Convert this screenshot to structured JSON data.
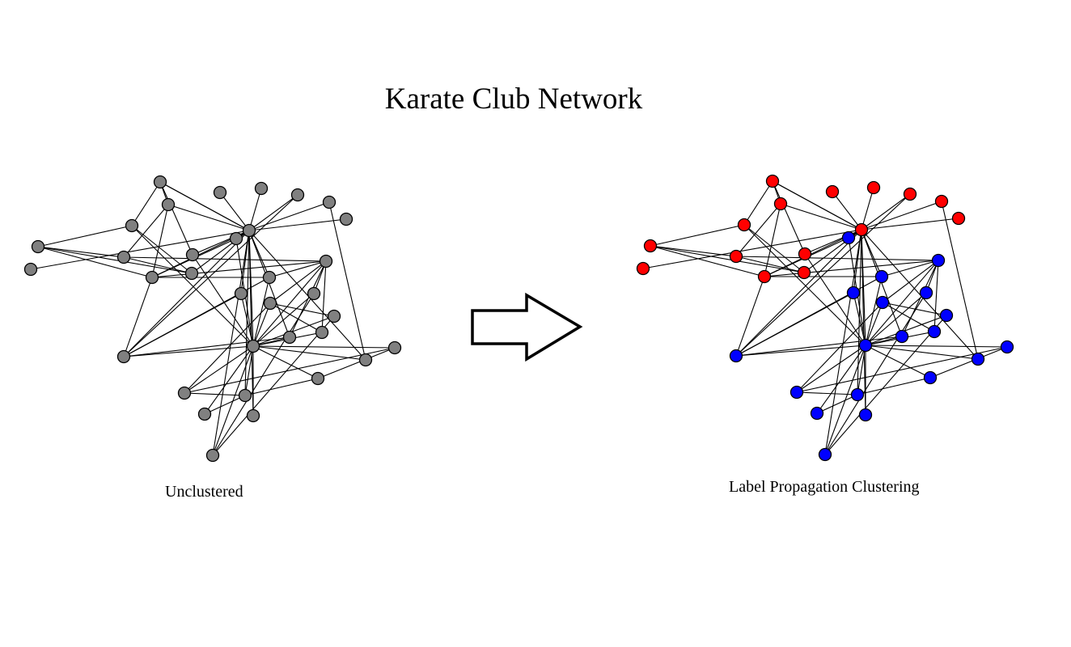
{
  "title": "Karate Club Network",
  "panels": [
    {
      "label": "Unclustered",
      "node_color": "#808080"
    },
    {
      "label": "Label Propagation Clustering",
      "clusters": [
        {
          "color": "#ff0000"
        },
        {
          "color": "#0000ff"
        }
      ]
    }
  ],
  "arrow_icon": "right-arrow-icon",
  "nodes": [
    {
      "id": 0,
      "cluster": 1
    },
    {
      "id": 1,
      "cluster": 0
    },
    {
      "id": 2,
      "cluster": 0
    },
    {
      "id": 3,
      "cluster": 0
    },
    {
      "id": 4,
      "cluster": 0
    },
    {
      "id": 5,
      "cluster": 0
    },
    {
      "id": 6,
      "cluster": 0
    },
    {
      "id": 7,
      "cluster": 0
    },
    {
      "id": 8,
      "cluster": 0
    },
    {
      "id": 9,
      "cluster": 0
    },
    {
      "id": 10,
      "cluster": 0
    },
    {
      "id": 11,
      "cluster": 0
    },
    {
      "id": 12,
      "cluster": 0
    },
    {
      "id": 13,
      "cluster": 0
    },
    {
      "id": 14,
      "cluster": 0
    },
    {
      "id": 15,
      "cluster": 1
    },
    {
      "id": 16,
      "cluster": 0
    },
    {
      "id": 17,
      "cluster": 1
    },
    {
      "id": 18,
      "cluster": 1
    },
    {
      "id": 19,
      "cluster": 1
    },
    {
      "id": 20,
      "cluster": 1
    },
    {
      "id": 21,
      "cluster": 1
    },
    {
      "id": 22,
      "cluster": 1
    },
    {
      "id": 23,
      "cluster": 1
    },
    {
      "id": 24,
      "cluster": 1
    },
    {
      "id": 25,
      "cluster": 1
    },
    {
      "id": 26,
      "cluster": 1
    },
    {
      "id": 27,
      "cluster": 1
    },
    {
      "id": 28,
      "cluster": 1
    },
    {
      "id": 29,
      "cluster": 1
    },
    {
      "id": 30,
      "cluster": 1
    },
    {
      "id": 31,
      "cluster": 1
    },
    {
      "id": 32,
      "cluster": 1
    },
    {
      "id": 33,
      "cluster": 1
    }
  ],
  "edges": [
    [
      0,
      15
    ],
    [
      0,
      16
    ],
    [
      0,
      17
    ],
    [
      0,
      18
    ],
    [
      0,
      19
    ],
    [
      0,
      20
    ],
    [
      0,
      21
    ],
    [
      0,
      22
    ],
    [
      0,
      23
    ],
    [
      0,
      24
    ],
    [
      0,
      25
    ],
    [
      0,
      26
    ],
    [
      0,
      27
    ],
    [
      0,
      28
    ],
    [
      0,
      29
    ],
    [
      0,
      30
    ],
    [
      0,
      31
    ],
    [
      0,
      32
    ],
    [
      0,
      33
    ],
    [
      1,
      2
    ],
    [
      1,
      16
    ],
    [
      2,
      8
    ],
    [
      3,
      4
    ],
    [
      4,
      7
    ],
    [
      4,
      8
    ],
    [
      2,
      7
    ],
    [
      3,
      1
    ],
    [
      5,
      16
    ],
    [
      6,
      16
    ],
    [
      8,
      16
    ],
    [
      9,
      16
    ],
    [
      10,
      16
    ],
    [
      11,
      16
    ],
    [
      12,
      16
    ],
    [
      13,
      16
    ],
    [
      1,
      16
    ],
    [
      8,
      15
    ],
    [
      1,
      13
    ],
    [
      3,
      14
    ],
    [
      4,
      14
    ],
    [
      7,
      14
    ],
    [
      2,
      16
    ],
    [
      14,
      16
    ],
    [
      15,
      16
    ],
    [
      16,
      17
    ],
    [
      16,
      18
    ],
    [
      16,
      24
    ],
    [
      16,
      25
    ],
    [
      16,
      26
    ],
    [
      16,
      30
    ],
    [
      16,
      32
    ],
    [
      16,
      33
    ],
    [
      8,
      17
    ],
    [
      8,
      19
    ],
    [
      7,
      19
    ],
    [
      8,
      25
    ],
    [
      17,
      19
    ],
    [
      17,
      25
    ],
    [
      19,
      20
    ],
    [
      19,
      22
    ],
    [
      19,
      23
    ],
    [
      19,
      24
    ],
    [
      20,
      33
    ],
    [
      21,
      22
    ],
    [
      21,
      33
    ],
    [
      22,
      23
    ],
    [
      22,
      29
    ],
    [
      24,
      25
    ],
    [
      18,
      25
    ],
    [
      3,
      0
    ],
    [
      13,
      0
    ],
    [
      10,
      25
    ],
    [
      11,
      26
    ],
    [
      27,
      28
    ],
    [
      27,
      29
    ],
    [
      28,
      30
    ],
    [
      29,
      30
    ],
    [
      30,
      31
    ]
  ]
}
